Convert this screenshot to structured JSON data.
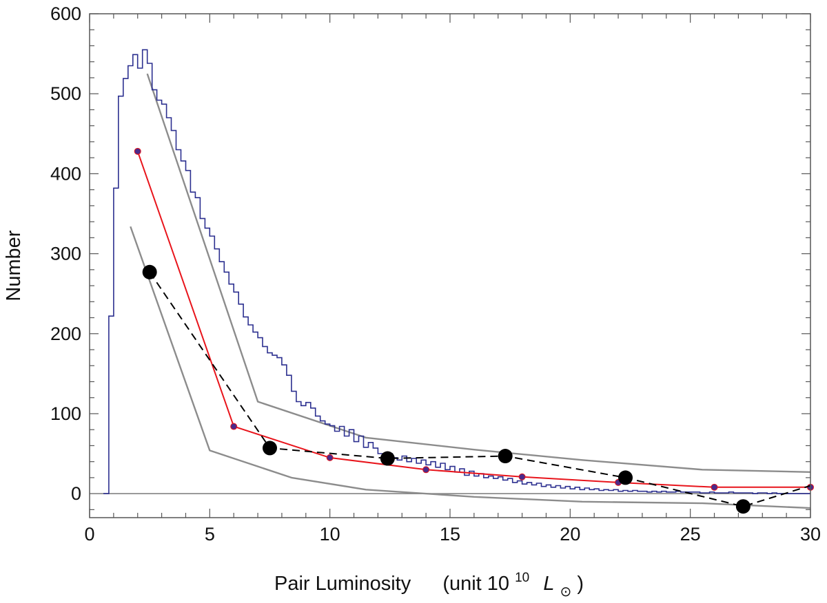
{
  "chart_data": {
    "type": "line",
    "title": "",
    "xlabel": {
      "main": "Pair Luminosity",
      "unit_prefix": "(unit 10",
      "unit_exponent": "10",
      "unit_symbol": "L",
      "unit_subscript": "⊙",
      "unit_suffix": ")"
    },
    "ylabel": "Number",
    "xlim": [
      0,
      30
    ],
    "ylim": [
      -30,
      600
    ],
    "x_ticks": [
      0,
      5,
      10,
      15,
      20,
      25,
      30
    ],
    "x_tick_labels": [
      "0",
      "5",
      "10",
      "15",
      "20",
      "25",
      "30"
    ],
    "y_ticks": [
      0,
      100,
      200,
      300,
      400,
      500,
      600
    ],
    "y_tick_labels": [
      "0",
      "100",
      "200",
      "300",
      "400",
      "500",
      "600"
    ],
    "grid": false,
    "colors": {
      "histogram": "#2b2f8f",
      "model": "#e8141b",
      "model_marker": "#4b2a8a",
      "bounds": "#8c8c8c",
      "observed": "#000000",
      "zero_line": "#8c8c8c",
      "axes": "#555555"
    },
    "series": [
      {
        "name": "histogram",
        "style": "step",
        "bin_width": 0.2,
        "edges_start": 0.8,
        "values": [
          222,
          382,
          497,
          519,
          535,
          549,
          532,
          555,
          538,
          505,
          492,
          487,
          470,
          454,
          430,
          416,
          404,
          377,
          370,
          344,
          332,
          322,
          306,
          290,
          277,
          262,
          252,
          237,
          221,
          211,
          202,
          195,
          184,
          176,
          173,
          170,
          161,
          148,
          128,
          115,
          110,
          114,
          107,
          97,
          91,
          87,
          85,
          78,
          84,
          72,
          80,
          65,
          72,
          58,
          64,
          57,
          50,
          45,
          50,
          45,
          42,
          47,
          40,
          44,
          38,
          42,
          36,
          40,
          33,
          38,
          30,
          34,
          27,
          31,
          23,
          28,
          22,
          25,
          20,
          22,
          19,
          21,
          17,
          19,
          14,
          16,
          12,
          14,
          11,
          13,
          9,
          11,
          8,
          10,
          7,
          9,
          6,
          8,
          5,
          7,
          5,
          6,
          4,
          5,
          4,
          5,
          3,
          4,
          3,
          4,
          3,
          3,
          2,
          3,
          2,
          3,
          2,
          2,
          3,
          2,
          2,
          2,
          2,
          1,
          1,
          2,
          1,
          1,
          1,
          2,
          1,
          1,
          1,
          1,
          0,
          1,
          1,
          0,
          1,
          0,
          0,
          0,
          0,
          0,
          0
        ]
      },
      {
        "name": "model",
        "style": "line-markers",
        "x": [
          2.0,
          6.0,
          10.0,
          14.0,
          18.0,
          22.0,
          26.0,
          30.0
        ],
        "y": [
          428,
          84,
          45,
          30,
          21,
          14,
          8,
          8
        ]
      },
      {
        "name": "upper-bound",
        "style": "line",
        "x": [
          2.4,
          7.0,
          11.5,
          16.0,
          20.5,
          25.5,
          30.0
        ],
        "y": [
          525,
          115,
          70,
          55,
          42,
          30,
          27
        ]
      },
      {
        "name": "lower-bound",
        "style": "line",
        "x": [
          1.7,
          5.0,
          8.4,
          11.5,
          16.0,
          20.5,
          25.5,
          30.0
        ],
        "y": [
          334,
          54,
          20,
          5,
          -4,
          -10,
          -12,
          -18
        ]
      },
      {
        "name": "observed",
        "style": "dashed-markers",
        "x": [
          2.5,
          7.5,
          12.4,
          17.3,
          22.3,
          27.2,
          30.0
        ],
        "y": [
          277,
          57,
          44,
          47,
          20,
          -16,
          10
        ]
      }
    ]
  }
}
